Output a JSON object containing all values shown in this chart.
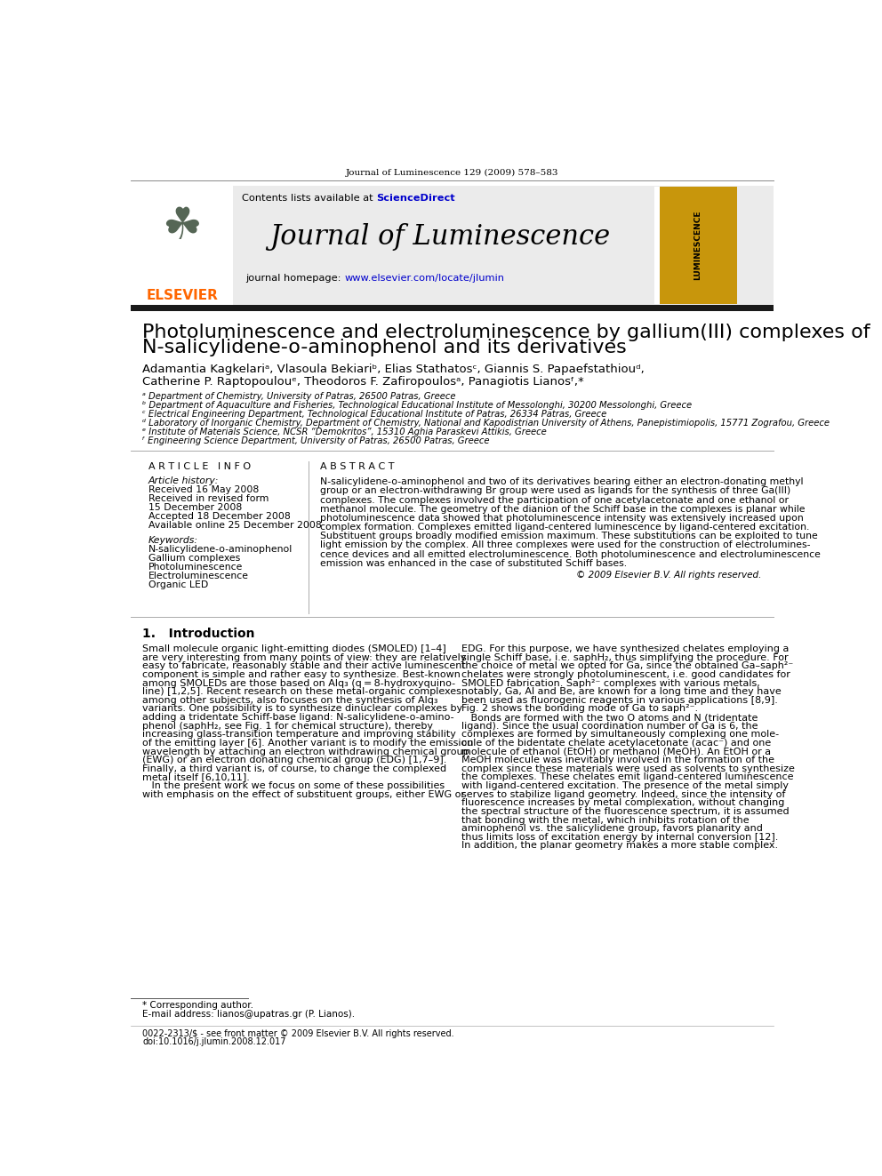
{
  "page_title": "Journal of Luminescence 129 (2009) 578–583",
  "journal_name": "Journal of Luminescence",
  "contents_line": "Contents lists available at ScienceDirect",
  "paper_title_line1": "Photoluminescence and electroluminescence by gallium(III) complexes of",
  "paper_title_line2": "N-salicylidene-o-aminophenol and its derivatives",
  "authors_line1": "Adamantia Kagkelariᵃ, Vlasoula Bekiariᵇ, Elias Stathatosᶜ, Giannis S. Papaefstathiouᵈ,",
  "authors_line2": "Catherine P. Raptopoulouᵉ, Theodoros F. Zafiropoulosᵃ, Panagiotis Lianosᶠ,*",
  "affil_a": "ᵃ Department of Chemistry, University of Patras, 26500 Patras, Greece",
  "affil_b": "ᵇ Department of Aquaculture and Fisheries, Technological Educational Institute of Messolonghi, 30200 Messolonghi, Greece",
  "affil_c": "ᶜ Electrical Engineering Department, Technological Educational Institute of Patras, 26334 Patras, Greece",
  "affil_d": "ᵈ Laboratory of Inorganic Chemistry, Department of Chemistry, National and Kapodistrian University of Athens, Panepistimiopolis, 15771 Zografou, Greece",
  "affil_e": "ᵉ Institute of Materials Science, NCSR “Demokritos”, 15310 Aghia Paraskevi Attikis, Greece",
  "affil_f": "ᶠ Engineering Science Department, University of Patras, 26500 Patras, Greece",
  "article_info_header": "A R T I C L E   I N F O",
  "abstract_header": "A B S T R A C T",
  "article_history_label": "Article history:",
  "received_label": "Received 16 May 2008",
  "revised_label": "Received in revised form",
  "revised_date": "15 December 2008",
  "accepted_label": "Accepted 18 December 2008",
  "available_label": "Available online 25 December 2008",
  "keywords_label": "Keywords:",
  "kw1": "N-salicylidene-o-aminophenol",
  "kw2": "Gallium complexes",
  "kw3": "Photoluminescence",
  "kw4": "Electroluminescence",
  "kw5": "Organic LED",
  "abstract_text": "N-salicylidene-o-aminophenol and two of its derivatives bearing either an electron-donating methyl\ngroup or an electron-withdrawing Br group were used as ligands for the synthesis of three Ga(III)\ncomplexes. The complexes involved the participation of one acetylacetonate and one ethanol or\nmethanol molecule. The geometry of the dianion of the Schiff base in the complexes is planar while\nphotoluminescence data showed that photoluminescence intensity was extensively increased upon\ncomplex formation. Complexes emitted ligand-centered luminescence by ligand-centered excitation.\nSubstituent groups broadly modified emission maximum. These substitutions can be exploited to tune\nlight emission by the complex. All three complexes were used for the construction of electrolumines-\ncence devices and all emitted electroluminescence. Both photoluminescence and electroluminescence\nemission was enhanced in the case of substituted Schiff bases.",
  "copyright": "© 2009 Elsevier B.V. All rights reserved.",
  "intro_header": "1.   Introduction",
  "intro_text1": "Small molecule organic light-emitting diodes (SMOLED) [1–4]\nare very interesting from many points of view: they are relatively\neasy to fabricate, reasonably stable and their active luminescent\ncomponent is simple and rather easy to synthesize. Best-known\namong SMOLEDs are those based on Alq₃ (q = 8-hydroxyquino-\nline) [1,2,5]. Recent research on these metal-organic complexes,\namong other subjects, also focuses on the synthesis of Alq₃\nvariants. One possibility is to synthesize dinuclear complexes by\nadding a tridentate Schiff-base ligand: N-salicylidene-o-amino-\nphenol (saphH₂, see Fig. 1 for chemical structure), thereby\nincreasing glass-transition temperature and improving stability\nof the emitting layer [6]. Another variant is to modify the emission\nwavelength by attaching an electron withdrawing chemical group\n(EWG) or an electron donating chemical group (EDG) [1,7–9].\nFinally, a third variant is, of course, to change the complexed\nmetal itself [6,10,11].\n   In the present work we focus on some of these possibilities\nwith emphasis on the effect of substituent groups, either EWG or",
  "right_col_text1": "EDG. For this purpose, we have synthesized chelates employing a\nsingle Schiff base, i.e. saphH₂, thus simplifying the procedure. For\nthe choice of metal we opted for Ga, since the obtained Ga–saph²⁻\nchelates were strongly photoluminescent, i.e. good candidates for\nSMOLED fabrication. Saph²⁻ complexes with various metals,\nnotably, Ga, Al and Be, are known for a long time and they have\nbeen used as fluorogenic reagents in various applications [8,9].\nFig. 2 shows the bonding mode of Ga to saph²⁻.\n   Bonds are formed with the two O atoms and N (tridentate\nligand). Since the usual coordination number of Ga is 6, the\ncomplexes are formed by simultaneously complexing one mole-\ncule of the bidentate chelate acetylacetonate (acac⁻) and one\nmolecule of ethanol (EtOH) or methanol (MeOH). An EtOH or a\nMeOH molecule was inevitably involved in the formation of the\ncomplex since these materials were used as solvents to synthesize\nthe complexes. These chelates emit ligand-centered luminescence\nwith ligand-centered excitation. The presence of the metal simply\nserves to stabilize ligand geometry. Indeed, since the intensity of\nfluorescence increases by metal complexation, without changing\nthe spectral structure of the fluorescence spectrum, it is assumed\nthat bonding with the metal, which inhibits rotation of the\naminophenol vs. the salicylidene group, favors planarity and\nthus limits loss of excitation energy by internal conversion [12].\nIn addition, the planar geometry makes a more stable complex.",
  "footnote_star": "* Corresponding author.",
  "footnote_email": "E-mail address: lianos@upatras.gr (P. Lianos).",
  "issn_line": "0022-2313/$ - see front matter © 2009 Elsevier B.V. All rights reserved.",
  "doi_line": "doi:10.1016/j.jlumin.2008.12.017",
  "elsevier_color": "#FF6600",
  "link_color": "#0000CC",
  "header_bg": "#f0f0f0",
  "gold_color": "#C8960C",
  "dark_bar_color": "#1a1a1a"
}
